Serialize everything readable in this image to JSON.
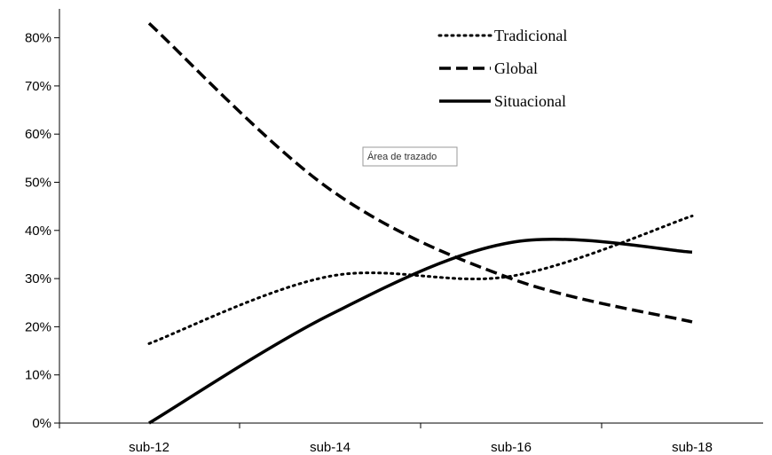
{
  "chart_data": {
    "type": "line",
    "categories": [
      "sub-12",
      "sub-14",
      "sub-16",
      "sub-18"
    ],
    "ylim": [
      0,
      0.85
    ],
    "y_ticks": [
      "0%",
      "10%",
      "20%",
      "30%",
      "40%",
      "50%",
      "60%",
      "70%",
      "80%"
    ],
    "grid": false,
    "legend_position": "top-right",
    "series": [
      {
        "name": "Tradicional",
        "style": "dotted",
        "values": [
          0.165,
          0.305,
          0.305,
          0.43
        ]
      },
      {
        "name": "Global",
        "style": "dashed",
        "values": [
          0.83,
          0.485,
          0.3,
          0.21
        ]
      },
      {
        "name": "Situacional",
        "style": "solid",
        "values": [
          0.0,
          0.225,
          0.375,
          0.355
        ]
      }
    ],
    "annotation": "Área de trazado"
  },
  "colors": {
    "line": "#000000",
    "axis": "#000000"
  }
}
